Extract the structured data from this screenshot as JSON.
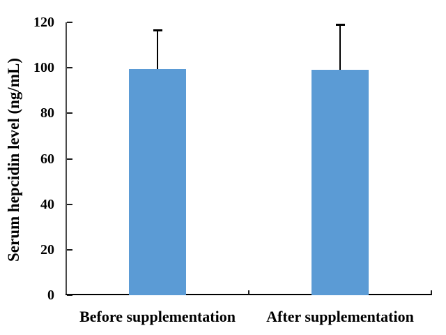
{
  "chart_data": {
    "type": "bar",
    "title": "",
    "categories": [
      "Before supplementation",
      "After supplementation"
    ],
    "values": [
      99.5,
      99
    ],
    "error_plus": [
      17,
      20
    ],
    "xlabel": "",
    "ylabel": "Serum hepcidin level (ng/mL)",
    "ylim": [
      0,
      120
    ],
    "yticks": [
      0,
      20,
      40,
      60,
      80,
      100,
      120
    ],
    "grid": "off",
    "legend": "none",
    "bar_color": "#5B9BD5",
    "error_bar_color": "#000000",
    "axis_color": "#000000",
    "background_color": "#FFFFFF"
  }
}
